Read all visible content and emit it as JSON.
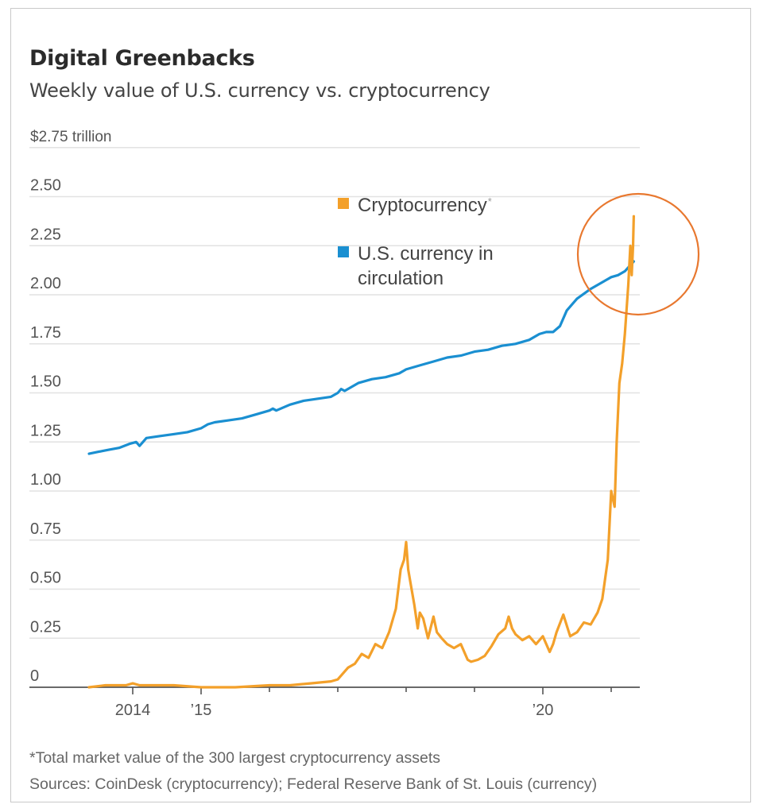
{
  "header": {
    "title": "Digital Greenbacks",
    "subtitle": "Weekly value of U.S. currency vs. cryptocurrency"
  },
  "footer": {
    "note": "*Total market value of the 300 largest cryptocurrency assets",
    "sources": "Sources: CoinDesk (cryptocurrency); Federal Reserve Bank of St. Louis (currency)"
  },
  "colors": {
    "crypto": "#f3a02a",
    "usd": "#1a8fd1",
    "annotation_circle": "#e8782f",
    "grid": "#e2e2e2",
    "axis": "#555555",
    "tick_text": "#555555"
  },
  "chart_data": {
    "type": "line",
    "title": "Digital Greenbacks",
    "subtitle": "Weekly value of U.S. currency vs. cryptocurrency",
    "ylabel": "$ trillion",
    "y_unit_label": "$2.75 trillion",
    "ylim": [
      0,
      2.75
    ],
    "y_ticks": [
      0,
      0.25,
      0.5,
      0.75,
      1.0,
      1.25,
      1.5,
      1.75,
      2.0,
      2.25,
      2.5,
      2.75
    ],
    "y_tick_labels": [
      "0",
      "0.25",
      "0.50",
      "0.75",
      "1.00",
      "1.25",
      "1.50",
      "1.75",
      "2.00",
      "2.25",
      "2.50",
      "$2.75 trillion"
    ],
    "xlim": [
      2012.65,
      2021.6
    ],
    "x_ticks": [
      2014,
      2015,
      2016,
      2017,
      2018,
      2019,
      2020,
      2021
    ],
    "x_tick_labels": [
      "2014",
      "’15",
      "",
      "",
      "",
      "",
      "’20",
      ""
    ],
    "grid": true,
    "legend": {
      "placement": "top-center",
      "entries": [
        {
          "label": "Cryptocurrency",
          "marker": "*",
          "series": "crypto"
        },
        {
          "label": "U.S. currency in circulation",
          "series": "usd"
        }
      ]
    },
    "annotation": {
      "type": "circle",
      "note": "highlights recent period where cryptocurrency value surpasses U.S. currency",
      "center_x": 2021.3,
      "center_y": 2.0
    },
    "series": [
      {
        "name": "U.S. currency in circulation",
        "id": "usd",
        "x": [
          2013.36,
          2013.5,
          2013.65,
          2013.8,
          2013.95,
          2014.05,
          2014.1,
          2014.2,
          2014.4,
          2014.6,
          2014.8,
          2015.0,
          2015.1,
          2015.2,
          2015.4,
          2015.6,
          2015.8,
          2016.0,
          2016.05,
          2016.1,
          2016.3,
          2016.5,
          2016.7,
          2016.9,
          2017.0,
          2017.05,
          2017.1,
          2017.3,
          2017.5,
          2017.7,
          2017.9,
          2018.0,
          2018.2,
          2018.4,
          2018.6,
          2018.8,
          2019.0,
          2019.2,
          2019.4,
          2019.6,
          2019.8,
          2019.95,
          2020.05,
          2020.15,
          2020.25,
          2020.35,
          2020.5,
          2020.7,
          2020.9,
          2021.0,
          2021.1,
          2021.2,
          2021.33
        ],
        "values": [
          1.19,
          1.2,
          1.21,
          1.22,
          1.24,
          1.25,
          1.23,
          1.27,
          1.28,
          1.29,
          1.3,
          1.32,
          1.34,
          1.35,
          1.36,
          1.37,
          1.39,
          1.41,
          1.42,
          1.41,
          1.44,
          1.46,
          1.47,
          1.48,
          1.5,
          1.52,
          1.51,
          1.55,
          1.57,
          1.58,
          1.6,
          1.62,
          1.64,
          1.66,
          1.68,
          1.69,
          1.71,
          1.72,
          1.74,
          1.75,
          1.77,
          1.8,
          1.81,
          1.81,
          1.84,
          1.92,
          1.98,
          2.03,
          2.07,
          2.09,
          2.1,
          2.12,
          2.17
        ]
      },
      {
        "name": "Cryptocurrency",
        "id": "crypto",
        "x": [
          2013.36,
          2013.6,
          2013.9,
          2014.0,
          2014.1,
          2014.3,
          2014.6,
          2015.0,
          2015.5,
          2016.0,
          2016.3,
          2016.6,
          2016.9,
          2017.0,
          2017.15,
          2017.25,
          2017.35,
          2017.45,
          2017.55,
          2017.65,
          2017.75,
          2017.85,
          2017.92,
          2017.97,
          2018.0,
          2018.03,
          2018.07,
          2018.12,
          2018.17,
          2018.2,
          2018.25,
          2018.32,
          2018.4,
          2018.45,
          2018.52,
          2018.6,
          2018.7,
          2018.8,
          2018.9,
          2018.95,
          2019.05,
          2019.15,
          2019.25,
          2019.35,
          2019.45,
          2019.5,
          2019.55,
          2019.6,
          2019.7,
          2019.8,
          2019.9,
          2020.0,
          2020.1,
          2020.15,
          2020.2,
          2020.3,
          2020.4,
          2020.5,
          2020.6,
          2020.7,
          2020.8,
          2020.87,
          2020.95,
          2021.0,
          2021.05,
          2021.08,
          2021.12,
          2021.16,
          2021.2,
          2021.25,
          2021.28,
          2021.3,
          2021.32,
          2021.33
        ],
        "values": [
          0.0,
          0.01,
          0.01,
          0.02,
          0.01,
          0.01,
          0.01,
          0.0,
          0.0,
          0.01,
          0.01,
          0.02,
          0.03,
          0.04,
          0.1,
          0.12,
          0.17,
          0.15,
          0.22,
          0.2,
          0.28,
          0.4,
          0.6,
          0.65,
          0.74,
          0.6,
          0.52,
          0.42,
          0.3,
          0.38,
          0.35,
          0.25,
          0.36,
          0.28,
          0.25,
          0.22,
          0.2,
          0.22,
          0.14,
          0.13,
          0.14,
          0.16,
          0.21,
          0.27,
          0.3,
          0.36,
          0.3,
          0.27,
          0.24,
          0.26,
          0.22,
          0.26,
          0.18,
          0.22,
          0.28,
          0.37,
          0.26,
          0.28,
          0.33,
          0.32,
          0.38,
          0.45,
          0.65,
          1.0,
          0.92,
          1.25,
          1.55,
          1.65,
          1.8,
          2.05,
          2.25,
          2.1,
          2.25,
          2.4
        ]
      }
    ]
  }
}
